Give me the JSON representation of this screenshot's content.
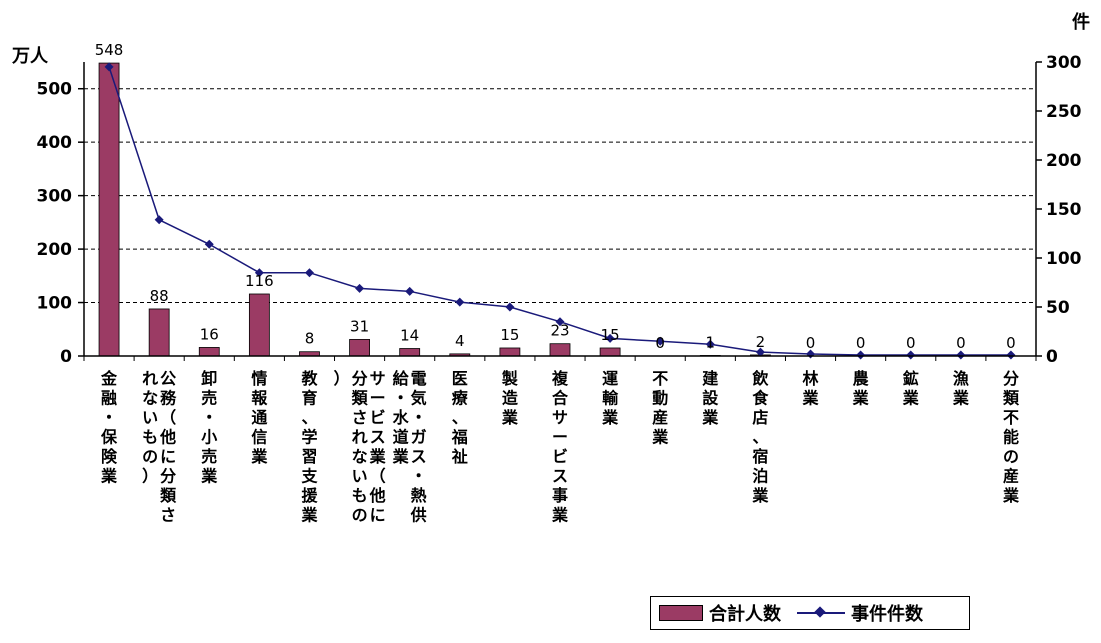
{
  "chart_data": {
    "type": "bar",
    "title": "",
    "y_left_unit": "万人",
    "y_right_unit": "件",
    "y_left_ticks": [
      "0",
      "100",
      "200",
      "300",
      "400",
      "500"
    ],
    "y_right_ticks": [
      "0",
      "50",
      "100",
      "150",
      "200",
      "250",
      "300"
    ],
    "ylim_left": [
      0,
      550
    ],
    "ylim_right": [
      0,
      300
    ],
    "grid": "dashed horizontal",
    "legend_position": "bottom-right",
    "categories": [
      "金融・保険業",
      "公務（他に分類されないもの）",
      "卸売・小売業",
      "情報通信業",
      "教育、学習支援業",
      "サービス業（他に分類されないもの）",
      "電気・ガス・熱供給・水道業",
      "医療、福祉",
      "製造業",
      "複合サービス事業",
      "運輸業",
      "不動産業",
      "建設業",
      "飲食店、宿泊業",
      "林業",
      "農業",
      "鉱業",
      "漁業",
      "分類不能の産業"
    ],
    "series": [
      {
        "name": "合計人数",
        "type": "bar",
        "axis": "left",
        "color": "#9b3b64",
        "values": [
          548,
          88,
          16,
          116,
          8,
          31,
          14,
          4,
          15,
          23,
          15,
          0,
          1,
          2,
          0,
          0,
          0,
          0,
          0
        ],
        "labels": [
          "548",
          "88",
          "16",
          "116",
          "8",
          "31",
          "14",
          "4",
          "15",
          "23",
          "15",
          "0",
          "1",
          "2",
          "0",
          "0",
          "0",
          "0",
          "0"
        ]
      },
      {
        "name": "事件件数",
        "type": "line",
        "axis": "right",
        "color": "#1a1a7a",
        "values": [
          295,
          139,
          114,
          85,
          85,
          69,
          66,
          55,
          50,
          35,
          18,
          15,
          12,
          4,
          2,
          1,
          1,
          1,
          1
        ]
      }
    ]
  }
}
